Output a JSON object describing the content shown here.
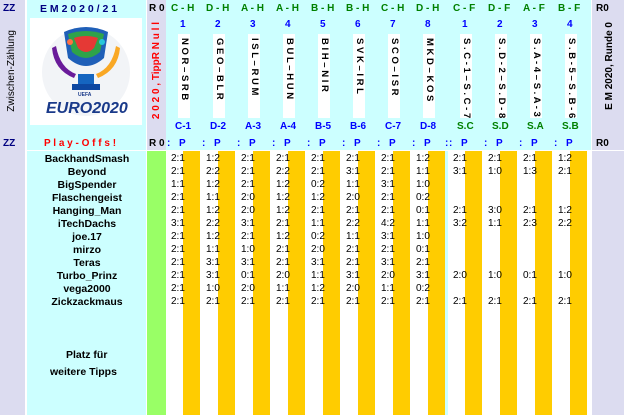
{
  "header": {
    "zz": "ZZ",
    "title": "E M  2 0 2 0  /  2 1",
    "r0": "R 0",
    "r0_right": "R0",
    "zwischen": "Zwischen-Zählung",
    "tipp_label": "2 0 2 0 ,  TippR  N u l l",
    "right_label": "E M  2020,  Runde 0",
    "logo_text": "EURO2020",
    "logo_uefa": "UEFA"
  },
  "matches": [
    {
      "group": "C - H",
      "num": "1",
      "teams": "N O R – S R B",
      "code": "C-1"
    },
    {
      "group": "D - H",
      "num": "2",
      "teams": "G E O – B L R",
      "code": "D-2"
    },
    {
      "group": "A - H",
      "num": "3",
      "teams": "I S L – R U M",
      "code": "A-3"
    },
    {
      "group": "A - H",
      "num": "4",
      "teams": "B U L – H U N",
      "code": "A-4"
    },
    {
      "group": "B - H",
      "num": "5",
      "teams": "B I H – N I R",
      "code": "B-5"
    },
    {
      "group": "B - H",
      "num": "6",
      "teams": "S V K – I R L",
      "code": "B-6"
    },
    {
      "group": "C - H",
      "num": "7",
      "teams": "S C O – I S R",
      "code": "C-7"
    },
    {
      "group": "D - H",
      "num": "8",
      "teams": "M K D – K O S",
      "code": "D-8"
    }
  ],
  "finals": [
    {
      "group": "C - F",
      "num": "1",
      "teams": "S . C - 1 – S . C - 7",
      "code": "S.C"
    },
    {
      "group": "D - F",
      "num": "2",
      "teams": "S . D - 2 – S . D - 8",
      "code": "S.D"
    },
    {
      "group": "A - F",
      "num": "3",
      "teams": "S . A - 4 – S . A - 3",
      "code": "S.A"
    },
    {
      "group": "B - F",
      "num": "4",
      "teams": "S . B - 5 – S . B - 6",
      "code": "S.B"
    }
  ],
  "subheader": {
    "zz": "ZZ",
    "r0": "R 0",
    "playoffs": "P l a y  -  O f f s  !",
    "p": "P",
    "colon": ":",
    "r0_right": "R0"
  },
  "players": [
    {
      "name": "BackhandSmash",
      "tips": [
        "2:1",
        "1:2",
        "2:1",
        "2:1",
        "2:1",
        "2:1",
        "2:1",
        "1:2"
      ],
      "final_tips": [
        "2:1",
        "2:1",
        "2:1",
        "1:2"
      ]
    },
    {
      "name": "Beyond",
      "tips": [
        "2:1",
        "2:2",
        "2:1",
        "2:2",
        "2:1",
        "3:1",
        "2:1",
        "1:1"
      ],
      "final_tips": [
        "3:1",
        "1:0",
        "1:3",
        "2:1"
      ]
    },
    {
      "name": "BigSpender",
      "tips": [
        "1:1",
        "1:2",
        "2:1",
        "1:2",
        "0:2",
        "1:1",
        "3:1",
        "1:0"
      ],
      "final_tips": [
        "",
        "",
        "",
        ""
      ]
    },
    {
      "name": "Flaschengeist",
      "tips": [
        "2:1",
        "1:1",
        "2:0",
        "1:2",
        "1:2",
        "2:0",
        "2:1",
        "0:2"
      ],
      "final_tips": [
        "",
        "",
        "",
        ""
      ]
    },
    {
      "name": "Hanging_Man",
      "tips": [
        "2:1",
        "1:2",
        "2:0",
        "1:2",
        "2:1",
        "2:1",
        "2:1",
        "0:1"
      ],
      "final_tips": [
        "2:1",
        "3:0",
        "2:1",
        "1:2"
      ]
    },
    {
      "name": "iTechDachs",
      "tips": [
        "3:1",
        "2:2",
        "3:1",
        "2:1",
        "1:1",
        "2:2",
        "4:2",
        "1:1"
      ],
      "final_tips": [
        "3:2",
        "1:1",
        "2:3",
        "2:2"
      ]
    },
    {
      "name": "joe.17",
      "tips": [
        "2:1",
        "1:2",
        "2:1",
        "1:2",
        "0:2",
        "1:1",
        "3:1",
        "1:0"
      ],
      "final_tips": [
        "",
        "",
        "",
        ""
      ]
    },
    {
      "name": "mirzo",
      "tips": [
        "2:1",
        "1:1",
        "1:0",
        "2:1",
        "2:0",
        "2:1",
        "2:1",
        "0:1"
      ],
      "final_tips": [
        "",
        "",
        "",
        ""
      ]
    },
    {
      "name": "Teras",
      "tips": [
        "2:1",
        "3:1",
        "3:1",
        "2:1",
        "3:1",
        "2:1",
        "3:1",
        "2:1"
      ],
      "final_tips": [
        "",
        "",
        "",
        ""
      ]
    },
    {
      "name": "Turbo_Prinz",
      "tips": [
        "2:1",
        "3:1",
        "0:1",
        "2:0",
        "1:1",
        "3:1",
        "2:0",
        "3:1"
      ],
      "final_tips": [
        "2:0",
        "1:0",
        "0:1",
        "1:0"
      ]
    },
    {
      "name": "vega2000",
      "tips": [
        "2:1",
        "1:0",
        "2:0",
        "1:1",
        "1:2",
        "2:0",
        "1:1",
        "0:2"
      ],
      "final_tips": [
        "",
        "",
        "",
        ""
      ]
    },
    {
      "name": "Zickzackmaus",
      "tips": [
        "2:1",
        "2:1",
        "2:1",
        "2:1",
        "2:1",
        "2:1",
        "2:1",
        "2:1"
      ],
      "final_tips": [
        "2:1",
        "2:1",
        "2:1",
        "2:1"
      ]
    }
  ],
  "footer": {
    "line1": "Platz für",
    "line2": "weitere Tipps"
  },
  "colors": {
    "cyan": "#ccffff",
    "lavender": "#dcdcf0",
    "green": "#99ff66",
    "gold": "#ffcc00",
    "navy": "#000080",
    "blue": "#0000ff",
    "red": "#ff0000"
  }
}
